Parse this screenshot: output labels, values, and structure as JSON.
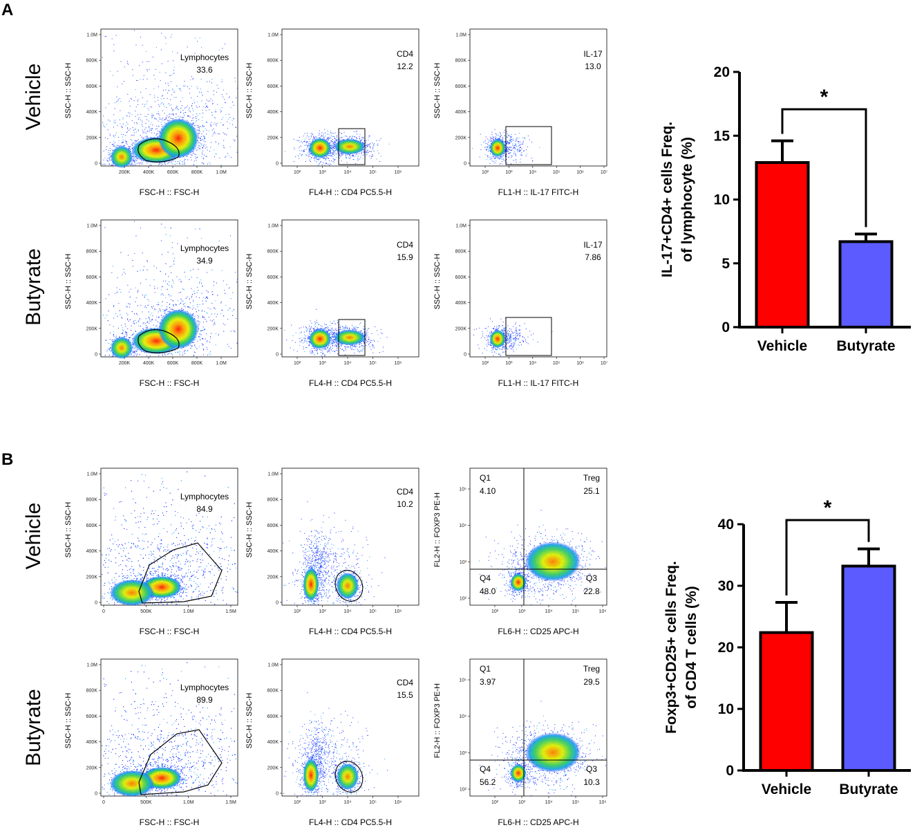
{
  "panels": {
    "A": {
      "letter": "A",
      "rows": [
        {
          "label": "Vehicle",
          "plots": [
            {
              "ylabel": "SSC-H :: SSC-H",
              "xlabel": "FSC-H :: FSC-H",
              "yticks": [
                "0",
                "200K",
                "400K",
                "600K",
                "800K",
                "1.0M"
              ],
              "xticks": [
                "200K",
                "400K",
                "600K",
                "800K",
                "1.0M"
              ],
              "gate_name": "Lymphocytes",
              "gate_value": "33.6"
            },
            {
              "ylabel": "SSC-H :: SSC-H",
              "xlabel": "FL4-H :: CD4 PC5.5-H",
              "yticks": [
                "0",
                "200K",
                "400K",
                "600K",
                "800K",
                "1.0M"
              ],
              "xticks": [
                "10²",
                "10³",
                "10⁴",
                "10⁵",
                "10⁶"
              ],
              "gate_name": "CD4",
              "gate_value": "12.2"
            },
            {
              "ylabel": "SSC-H :: SSC-H",
              "xlabel": "FL1-H :: IL-17 FITC-H",
              "yticks": [
                "0",
                "200K",
                "400K",
                "600K",
                "800K",
                "1.0M"
              ],
              "xticks": [
                "10²",
                "10³",
                "10⁴",
                "10⁵",
                "10⁶",
                "10⁷"
              ],
              "gate_name": "IL-17",
              "gate_value": "13.0"
            }
          ]
        },
        {
          "label": "Butyrate",
          "plots": [
            {
              "ylabel": "SSC-H :: SSC-H",
              "xlabel": "FSC-H :: FSC-H",
              "yticks": [
                "0",
                "200K",
                "400K",
                "600K",
                "800K",
                "1.0M"
              ],
              "xticks": [
                "200K",
                "400K",
                "600K",
                "800K",
                "1.0M"
              ],
              "gate_name": "Lymphocytes",
              "gate_value": "34.9"
            },
            {
              "ylabel": "SSC-H :: SSC-H",
              "xlabel": "FL4-H :: CD4 PC5.5-H",
              "yticks": [
                "0",
                "200K",
                "400K",
                "600K",
                "800K",
                "1.0M"
              ],
              "xticks": [
                "10²",
                "10³",
                "10⁴",
                "10⁵",
                "10⁶"
              ],
              "gate_name": "CD4",
              "gate_value": "15.9"
            },
            {
              "ylabel": "SSC-H :: SSC-H",
              "xlabel": "FL1-H :: IL-17 FITC-H",
              "yticks": [
                "0",
                "200K",
                "400K",
                "600K",
                "800K",
                "1.0M"
              ],
              "xticks": [
                "10²",
                "10³",
                "10⁴",
                "10⁵",
                "10⁶",
                "10⁷"
              ],
              "gate_name": "IL-17",
              "gate_value": "7.86"
            }
          ]
        }
      ]
    },
    "B": {
      "letter": "B",
      "rows": [
        {
          "label": "Vehicle",
          "plots": [
            {
              "ylabel": "SSC-H :: SSC-H",
              "xlabel": "FSC-H :: FSC-H",
              "yticks": [
                "0",
                "200K",
                "400K",
                "600K",
                "800K",
                "1.0M"
              ],
              "xticks": [
                "0",
                "500K",
                "1.0M",
                "1.5M"
              ],
              "gate_name": "Lymphocytes",
              "gate_value": "84.9"
            },
            {
              "ylabel": "SSC-H :: SSC-H",
              "xlabel": "FL4-H :: CD4 PC5.5-H",
              "yticks": [
                "0",
                "200K",
                "400K",
                "600K",
                "800K",
                "1.0M"
              ],
              "xticks": [
                "10²",
                "10³",
                "10⁴",
                "10⁵",
                "10⁶"
              ],
              "gate_name": "CD4",
              "gate_value": "10.2"
            },
            {
              "ylabel": "FL2-H :: FOXP3 PE-H",
              "xlabel": "FL6-H :: CD25 APC-H",
              "yticks": [
                "10²",
                "10³",
                "10⁴",
                "10⁵"
              ],
              "xticks": [
                "10²",
                "10³",
                "10⁴",
                "10⁵",
                "10⁶"
              ],
              "quadrants": {
                "q1": "Q1",
                "q1_val": "4.10",
                "treg": "Treg",
                "treg_val": "25.1",
                "q4": "Q4",
                "q4_val": "48.0",
                "q3": "Q3",
                "q3_val": "22.8"
              }
            }
          ]
        },
        {
          "label": "Butyrate",
          "plots": [
            {
              "ylabel": "SSC-H :: SSC-H",
              "xlabel": "FSC-H :: FSC-H",
              "yticks": [
                "0",
                "200K",
                "400K",
                "600K",
                "800K",
                "1.0M"
              ],
              "xticks": [
                "0",
                "500K",
                "1.0M",
                "1.5M"
              ],
              "gate_name": "Lymphocytes",
              "gate_value": "89.9"
            },
            {
              "ylabel": "SSC-H :: SSC-H",
              "xlabel": "FL4-H :: CD4 PC5.5-H",
              "yticks": [
                "0",
                "200K",
                "400K",
                "600K",
                "800K",
                "1.0M"
              ],
              "xticks": [
                "10²",
                "10³",
                "10⁴",
                "10⁵",
                "10⁶"
              ],
              "gate_name": "CD4",
              "gate_value": "15.5"
            },
            {
              "ylabel": "FL2-H :: FOXP3 PE-H",
              "xlabel": "FL6-H :: CD25 APC-H",
              "yticks": [
                "10²",
                "10³",
                "10⁴",
                "10⁵"
              ],
              "xticks": [
                "10²",
                "10³",
                "10⁴",
                "10⁵",
                "10⁶"
              ],
              "quadrants": {
                "q1": "Q1",
                "q1_val": "3.97",
                "treg": "Treg",
                "treg_val": "29.5",
                "q4": "Q4",
                "q4_val": "56.2",
                "q3": "Q3",
                "q3_val": "10.3"
              }
            }
          ]
        }
      ]
    }
  },
  "colors": {
    "vehicle": "#ff0000",
    "butyrate": "#5b5bff"
  },
  "chart_data": [
    {
      "type": "bar",
      "panel": "A",
      "categories": [
        "Vehicle",
        "Butyrate"
      ],
      "values": [
        12.9,
        6.7
      ],
      "errors": [
        1.7,
        0.6
      ],
      "ylabel_line1": "IL-17+CD4+ cells Freq.",
      "ylabel_line2": "of lymphocyte (%)",
      "ylim": [
        0,
        20
      ],
      "yticks": [
        0,
        5,
        10,
        15,
        20
      ],
      "significance": "*"
    },
    {
      "type": "bar",
      "panel": "B",
      "categories": [
        "Vehicle",
        "Butyrate"
      ],
      "values": [
        22.4,
        33.2
      ],
      "errors": [
        4.9,
        2.8
      ],
      "ylabel_line1": "Foxp3+CD25+ cells Freq.",
      "ylabel_line2": "of CD4 T cells (%)",
      "ylim": [
        0,
        40
      ],
      "yticks": [
        0,
        10,
        20,
        30,
        40
      ],
      "significance": "*"
    }
  ]
}
